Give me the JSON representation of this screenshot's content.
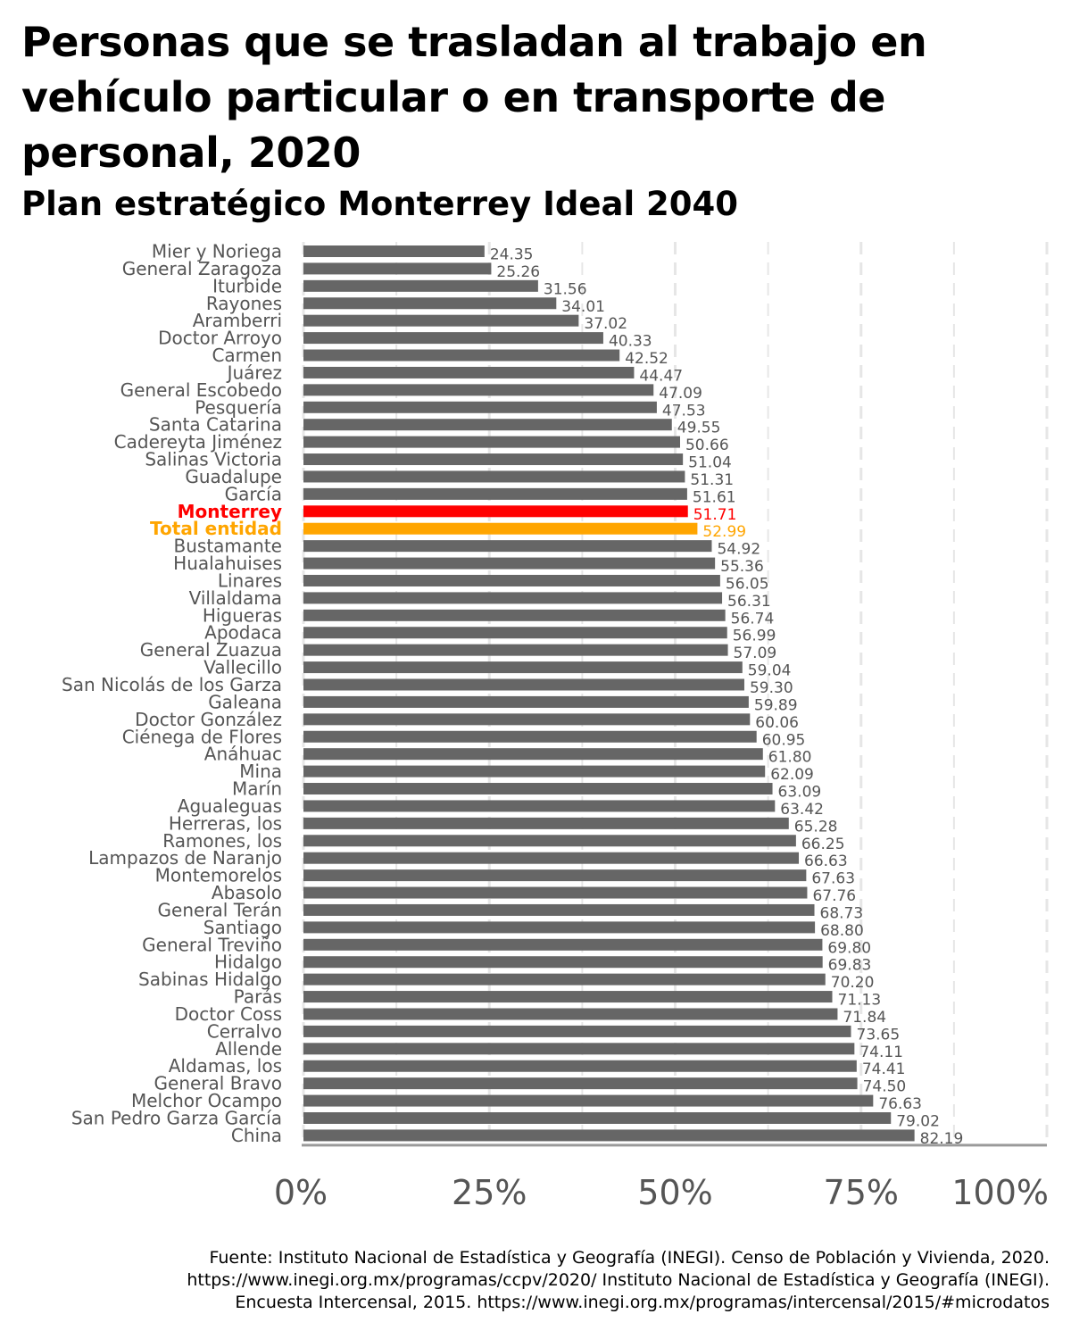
{
  "title": "Personas que se trasladan al trabajo en vehículo particular o en transporte de personal, 2020",
  "subtitle": "Plan estratégico Monterrey Ideal 2040",
  "caption": "Fuente: Instituto Nacional de Estadística y Geografía (INEGI). Censo de Población y Vivienda, 2020. https://www.inegi.org.mx/programas/ccpv/2020/ Instituto Nacional de Estadística y Geografía (INEGI). Encuesta Intercensal, 2015. https://www.inegi.org.mx/programas/intercensal/2015/#microdatos",
  "colors": {
    "default_bar": "#666666",
    "default_label": "#555555",
    "monterrey": "#ff0000",
    "total": "#ffa500",
    "grid": "#e6e6e6",
    "axis": "#9a9a9a"
  },
  "chart_data": {
    "type": "bar",
    "orientation": "horizontal",
    "xlim": [
      0,
      100
    ],
    "x_ticks": [
      "0%",
      "25%",
      "50%",
      "75%",
      "100%"
    ],
    "x_tick_values": [
      0,
      25,
      50,
      75,
      100
    ],
    "highlight": {
      "Monterrey": "monterrey",
      "Total entidad": "total"
    },
    "categories": [
      "Mier y Noriega",
      "General Zaragoza",
      "Iturbide",
      "Rayones",
      "Aramberri",
      "Doctor Arroyo",
      "Carmen",
      "Juárez",
      "General Escobedo",
      "Pesquería",
      "Santa Catarina",
      "Cadereyta Jiménez",
      "Salinas Victoria",
      "Guadalupe",
      "García",
      "Monterrey",
      "Total entidad",
      "Bustamante",
      "Hualahuises",
      "Linares",
      "Villaldama",
      "Higueras",
      "Apodaca",
      "General Zuazua",
      "Vallecillo",
      "San Nicolás de los Garza",
      "Galeana",
      "Doctor González",
      "Ciénega de Flores",
      "Anáhuac",
      "Mina",
      "Marín",
      "Agualeguas",
      "Herreras, los",
      "Ramones, los",
      "Lampazos de Naranjo",
      "Montemorelos",
      "Abasolo",
      "General Terán",
      "Santiago",
      "General Treviño",
      "Hidalgo",
      "Sabinas Hidalgo",
      "Parás",
      "Doctor Coss",
      "Cerralvo",
      "Allende",
      "Aldamas, los",
      "General Bravo",
      "Melchor Ocampo",
      "San Pedro Garza García",
      "China"
    ],
    "values": [
      24.35,
      25.26,
      31.56,
      34.01,
      37.02,
      40.33,
      42.52,
      44.47,
      47.09,
      47.53,
      49.55,
      50.66,
      51.04,
      51.31,
      51.61,
      51.71,
      52.99,
      54.92,
      55.36,
      56.05,
      56.31,
      56.74,
      56.99,
      57.09,
      59.04,
      59.3,
      59.89,
      60.06,
      60.95,
      61.8,
      62.09,
      63.09,
      63.42,
      65.28,
      66.25,
      66.63,
      67.63,
      67.76,
      68.73,
      68.8,
      69.8,
      69.83,
      70.2,
      71.13,
      71.84,
      73.65,
      74.11,
      74.41,
      74.5,
      76.63,
      79.02,
      82.19
    ],
    "value_labels": [
      "24.35",
      "25.26",
      "31.56",
      "34.01",
      "37.02",
      "40.33",
      "42.52",
      "44.47",
      "47.09",
      "47.53",
      "49.55",
      "50.66",
      "51.04",
      "51.31",
      "51.61",
      "51.71",
      "52.99",
      "54.92",
      "55.36",
      "56.05",
      "56.31",
      "56.74",
      "56.99",
      "57.09",
      "59.04",
      "59.30",
      "59.89",
      "60.06",
      "60.95",
      "61.80",
      "62.09",
      "63.09",
      "63.42",
      "65.28",
      "66.25",
      "66.63",
      "67.63",
      "67.76",
      "68.73",
      "68.80",
      "69.80",
      "69.83",
      "70.20",
      "71.13",
      "71.84",
      "73.65",
      "74.11",
      "74.41",
      "74.50",
      "76.63",
      "79.02",
      "82.19"
    ]
  }
}
